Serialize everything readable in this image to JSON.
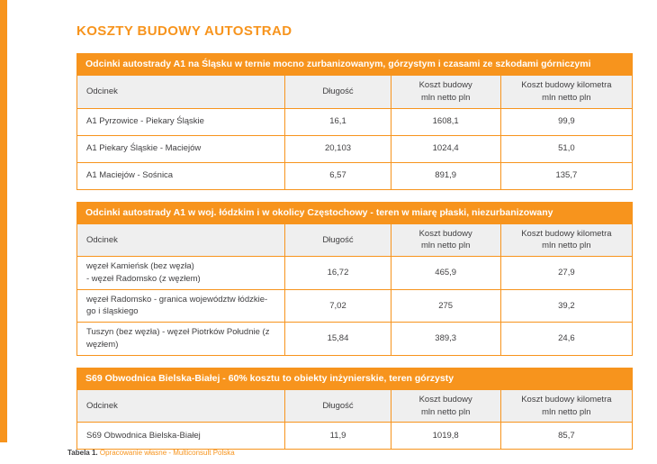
{
  "page": {
    "title": "KOSZTY BUDOWY AUTOSTRAD"
  },
  "columns": {
    "odcinek": "Odcinek",
    "dlugosc": "Długość",
    "koszt": "Koszt budowy\nmln netto pln",
    "koszt_km": "Koszt budowy kilometra\nmln netto pln"
  },
  "colors": {
    "accent_orange": "#F7941D",
    "header_gray": "#EFEFEF",
    "text_dark": "#414042"
  },
  "sections": [
    {
      "header": "Odcinki autostrady A1 na Śląsku w ternie mocno zurbanizowanym, górzystym i czasami ze szkodami górniczymi",
      "rows": [
        {
          "odcinek": "A1 Pyrzowice - Piekary Śląskie",
          "dlugosc": "16,1",
          "koszt": "1608,1",
          "koszt_km": "99,9"
        },
        {
          "odcinek": "A1 Piekary Śląskie - Maciejów",
          "dlugosc": "20,103",
          "koszt": "1024,4",
          "koszt_km": "51,0"
        },
        {
          "odcinek": "A1 Maciejów - Sośnica",
          "dlugosc": "6,57",
          "koszt": "891,9",
          "koszt_km": "135,7"
        }
      ]
    },
    {
      "header": "Odcinki autostrady A1 w woj. łódzkim i w okolicy Częstochowy - teren w miarę płaski, niezurbanizowany",
      "rows": [
        {
          "odcinek": "węzeł Kamieńsk (bez węzła)\n- węzeł Radomsko (z węzłem)",
          "dlugosc": "16,72",
          "koszt": "465,9",
          "koszt_km": "27,9"
        },
        {
          "odcinek": "węzeł Radomsko - granica województw łódzkie-\ngo i śląskiego",
          "dlugosc": "7,02",
          "koszt": "275",
          "koszt_km": "39,2"
        },
        {
          "odcinek": "Tuszyn (bez węzła) - węzeł Piotrków Południe (z\nwęzłem)",
          "dlugosc": "15,84",
          "koszt": "389,3",
          "koszt_km": "24,6"
        }
      ]
    },
    {
      "header": "S69 Obwodnica Bielska-Białej - 60% kosztu to obiekty inżynierskie, teren górzysty",
      "rows": [
        {
          "odcinek": "S69 Obwodnica Bielska-Białej",
          "dlugosc": "11,9",
          "koszt": "1019,8",
          "koszt_km": "85,7"
        }
      ]
    }
  ],
  "footer": {
    "label": "Tabela 1.",
    "text": " Opracowanie własne - Multiconsult Polska"
  }
}
